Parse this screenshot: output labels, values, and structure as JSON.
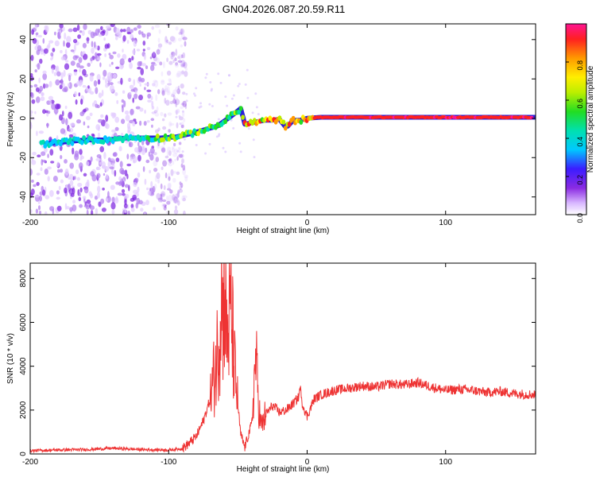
{
  "title": "GN04.2026.087.20.59.R11",
  "chart_data": [
    {
      "type": "heatmap",
      "xlabel": "Height of straight line (km)",
      "ylabel": "Frequency (Hz)",
      "xlim": [
        -200,
        165
      ],
      "ylim": [
        -49,
        48
      ],
      "xticks": [
        -200,
        -100,
        0,
        100
      ],
      "yticks": [
        -40,
        -20,
        0,
        20,
        40
      ],
      "grid": false,
      "colorbar": {
        "label": "Normalized spectral amplitude",
        "range": [
          0,
          1
        ],
        "ticks": [
          0.0,
          0.2,
          0.4,
          0.6,
          0.8
        ],
        "tick_labels": [
          "0.0",
          "0.2",
          "0.4",
          "0.6",
          "0.8"
        ]
      },
      "ridge": {
        "x": [
          -190,
          -175,
          -160,
          -145,
          -130,
          -115,
          -105,
          -95,
          -85,
          -75,
          -65,
          -55,
          -48,
          -45,
          -38,
          -30,
          -25,
          -20,
          -16,
          -14,
          -10,
          -5,
          0,
          10,
          30,
          60,
          100,
          140,
          165
        ],
        "y": [
          -13,
          -12,
          -11,
          -11,
          -10,
          -10,
          -10,
          -9.5,
          -8,
          -6,
          -4,
          1,
          5,
          -3,
          -2,
          -1,
          -1,
          -0.5,
          -4,
          -4,
          -1,
          -1,
          0,
          0.5,
          0.5,
          0.5,
          0.5,
          0.5,
          0.5
        ]
      },
      "noise_region_x": [
        -200,
        -95
      ]
    },
    {
      "type": "line",
      "xlabel": "Height of straight line (km)",
      "ylabel": "SNR (10 * v/v)",
      "xlim": [
        -200,
        165
      ],
      "ylim": [
        0,
        8700
      ],
      "xticks": [
        -200,
        -100,
        0,
        100
      ],
      "yticks": [
        0,
        2000,
        4000,
        6000,
        8000
      ],
      "grid": false,
      "series": [
        {
          "color": "#ee3333",
          "x": [
            -200,
            -180,
            -160,
            -140,
            -120,
            -100,
            -90,
            -85,
            -80,
            -75,
            -70,
            -66,
            -63,
            -62,
            -61,
            -60,
            -58,
            -55,
            -52,
            -50,
            -48,
            -45,
            -40,
            -37,
            -35,
            -33,
            -30,
            -25,
            -20,
            -15,
            -10,
            -6,
            -5,
            -4,
            0,
            5,
            10,
            20,
            30,
            40,
            50,
            60,
            70,
            80,
            90,
            100,
            110,
            120,
            130,
            140,
            150,
            165
          ],
          "y": [
            150,
            180,
            200,
            260,
            200,
            180,
            250,
            500,
            800,
            1500,
            2500,
            4000,
            5800,
            8600,
            6000,
            8000,
            5200,
            6600,
            3500,
            2200,
            900,
            300,
            1400,
            4500,
            2200,
            1200,
            1800,
            2200,
            1900,
            2000,
            2300,
            2600,
            3100,
            2400,
            1700,
            2500,
            2700,
            2900,
            3000,
            3100,
            3050,
            3200,
            3150,
            3250,
            3050,
            2900,
            2950,
            2900,
            2800,
            2850,
            2750,
            2700
          ]
        }
      ]
    }
  ]
}
